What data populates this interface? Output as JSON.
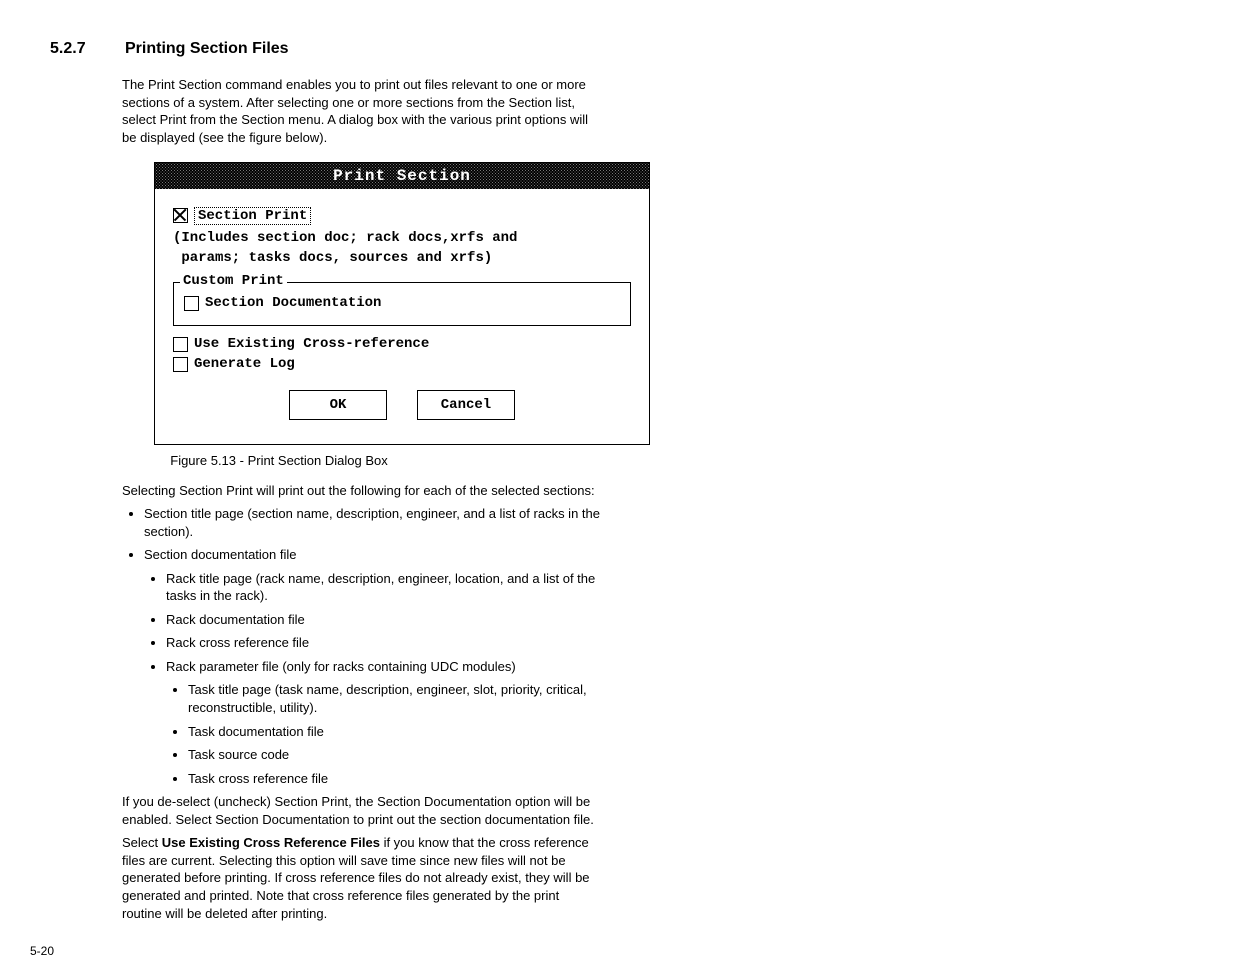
{
  "heading": {
    "number": "5.2.7",
    "title": "Printing Section Files"
  },
  "intro_para": "The Print Section command enables you to print out files relevant to one or more sections of a system. After selecting one or more sections from the Section list, select Print from the Section menu. A dialog box with the various print options will be displayed (see the figure below).",
  "dialog": {
    "title": "Print Section",
    "section_print": {
      "checked": true,
      "label": "Section Print",
      "desc_line1": "(Includes section doc; rack docs,xrfs and",
      "desc_line2": " params; tasks docs, sources and xrfs)"
    },
    "group_legend": "Custom Print",
    "section_doc_label": "Section Documentation",
    "use_xref_label": "Use Existing Cross-reference",
    "gen_log_label": "Generate Log",
    "ok_label": "OK",
    "cancel_label": "Cancel"
  },
  "figure_caption": "Figure 5.13 - Print Section Dialog Box",
  "after_para": "Selecting Section Print will print out the following for each of the selected sections:",
  "bullets_level1_a": "Section title page (section name, description, engineer, and a list of racks in the section).",
  "bullets_level1_b": "Section documentation file",
  "bullets_level2_a": "Rack title page (rack name, description, engineer, location, and a list of the tasks in the rack).",
  "bullets_level2_b": "Rack documentation file",
  "bullets_level2_c": "Rack cross reference file",
  "bullets_level2_d": "Rack parameter file (only for racks containing UDC modules)",
  "bullets_level3_a": "Task title page (task name, description, engineer, slot, priority, critical, reconstructible, utility).",
  "bullets_level3_b": "Task documentation file",
  "bullets_level3_c": "Task source code",
  "bullets_level3_d": "Task cross reference file",
  "para_deselect": "If you de-select (uncheck) Section Print, the Section Documentation option will be enabled. Select Section Documentation to print out the section documentation file.",
  "para_xref_prefix": "Select ",
  "para_xref_bold": "Use Existing Cross Reference Files",
  "para_xref_suffix": " if you know that the cross reference files are current. Selecting this option will save time since new files will not be generated before printing. If cross reference files do not already exist, they will be generated and printed. Note that cross reference files generated by the print routine will be deleted after printing.",
  "page_number": "5-20"
}
